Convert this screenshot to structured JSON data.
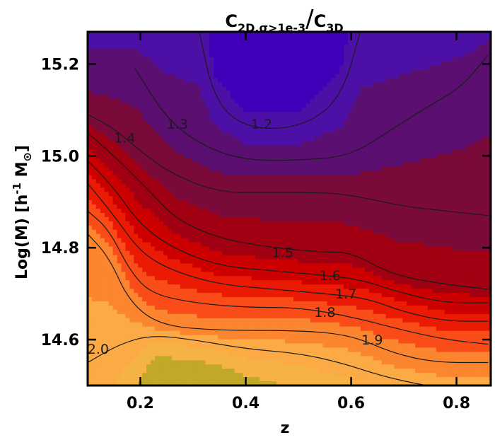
{
  "chart_data": {
    "type": "contour",
    "title": {
      "numerator_main": "C",
      "numerator_sub": "2D,σ>1e-3",
      "separator": "/",
      "denominator_main": "C",
      "denominator_sub": "3D"
    },
    "xlabel": "z",
    "ylabel": {
      "main": "Log(M)  [h",
      "sup": "-1",
      "rest": " M",
      "symbol": "⊙",
      "close": "]"
    },
    "xlim": [
      0.1,
      0.865
    ],
    "ylim": [
      14.5,
      15.27
    ],
    "x_ticks": [
      {
        "value": 0.2,
        "label": "0.2"
      },
      {
        "value": 0.4,
        "label": "0.4"
      },
      {
        "value": 0.6,
        "label": "0.6"
      },
      {
        "value": 0.8,
        "label": "0.8"
      }
    ],
    "y_ticks": [
      {
        "value": 14.6,
        "label": "14.6"
      },
      {
        "value": 14.8,
        "label": "14.8"
      },
      {
        "value": 15.0,
        "label": "15.0"
      },
      {
        "value": 15.2,
        "label": "15.2"
      }
    ],
    "contour_levels": [
      {
        "level": 1.2,
        "label": "1.2",
        "label_at": [
          0.43,
          15.07
        ],
        "points": [
          [
            0.31,
            15.28
          ],
          [
            0.34,
            15.12
          ],
          [
            0.4,
            15.06
          ],
          [
            0.5,
            15.06
          ],
          [
            0.58,
            15.12
          ],
          [
            0.62,
            15.28
          ]
        ]
      },
      {
        "level": 1.3,
        "label": "1.3",
        "label_at": [
          0.27,
          15.07
        ],
        "points": [
          [
            0.19,
            15.19
          ],
          [
            0.25,
            15.08
          ],
          [
            0.32,
            15.02
          ],
          [
            0.4,
            14.99
          ],
          [
            0.5,
            14.99
          ],
          [
            0.6,
            15.0
          ],
          [
            0.68,
            15.06
          ],
          [
            0.75,
            15.11
          ],
          [
            0.81,
            15.15
          ],
          [
            0.86,
            15.22
          ]
        ]
      },
      {
        "level": 1.4,
        "label": "1.4",
        "label_at": [
          0.17,
          15.04
        ],
        "points": [
          [
            0.1,
            15.09
          ],
          [
            0.15,
            15.06
          ],
          [
            0.2,
            15.01
          ],
          [
            0.26,
            14.96
          ],
          [
            0.35,
            14.92
          ],
          [
            0.45,
            14.92
          ],
          [
            0.56,
            14.92
          ],
          [
            0.62,
            14.91
          ],
          [
            0.7,
            14.89
          ],
          [
            0.78,
            14.88
          ],
          [
            0.86,
            14.87
          ]
        ]
      },
      {
        "level": 1.5,
        "label": "1.5",
        "label_at": [
          0.47,
          14.79
        ],
        "points": [
          [
            0.1,
            15.05
          ],
          [
            0.15,
            15.0
          ],
          [
            0.22,
            14.92
          ],
          [
            0.27,
            14.86
          ],
          [
            0.35,
            14.82
          ],
          [
            0.45,
            14.8
          ],
          [
            0.55,
            14.79
          ],
          [
            0.6,
            14.79
          ],
          [
            0.68,
            14.74
          ],
          [
            0.78,
            14.72
          ],
          [
            0.86,
            14.71
          ]
        ]
      },
      {
        "level": 1.6,
        "label": "1.6",
        "label_at": [
          0.56,
          14.74
        ],
        "points": [
          [
            0.1,
            14.99
          ],
          [
            0.15,
            14.93
          ],
          [
            0.2,
            14.85
          ],
          [
            0.26,
            14.8
          ],
          [
            0.35,
            14.76
          ],
          [
            0.45,
            14.75
          ],
          [
            0.55,
            14.74
          ],
          [
            0.62,
            14.73
          ],
          [
            0.7,
            14.7
          ],
          [
            0.78,
            14.68
          ],
          [
            0.86,
            14.68
          ]
        ]
      },
      {
        "level": 1.7,
        "label": "1.7",
        "label_at": [
          0.59,
          14.7
        ],
        "points": [
          [
            0.1,
            14.94
          ],
          [
            0.15,
            14.87
          ],
          [
            0.2,
            14.79
          ],
          [
            0.26,
            14.75
          ],
          [
            0.35,
            14.72
          ],
          [
            0.45,
            14.71
          ],
          [
            0.55,
            14.7
          ],
          [
            0.63,
            14.69
          ],
          [
            0.7,
            14.66
          ],
          [
            0.78,
            14.64
          ],
          [
            0.86,
            14.64
          ]
        ]
      },
      {
        "level": 1.8,
        "label": "1.8",
        "label_at": [
          0.55,
          14.66
        ],
        "points": [
          [
            0.1,
            14.88
          ],
          [
            0.14,
            14.84
          ],
          [
            0.18,
            14.75
          ],
          [
            0.22,
            14.7
          ],
          [
            0.3,
            14.68
          ],
          [
            0.4,
            14.67
          ],
          [
            0.5,
            14.67
          ],
          [
            0.6,
            14.65
          ],
          [
            0.7,
            14.62
          ],
          [
            0.78,
            14.6
          ],
          [
            0.86,
            14.59
          ]
        ]
      },
      {
        "level": 1.9,
        "label": "1.9",
        "label_at": [
          0.64,
          14.6
        ],
        "points": [
          [
            0.1,
            14.83
          ],
          [
            0.14,
            14.78
          ],
          [
            0.18,
            14.68
          ],
          [
            0.24,
            14.63
          ],
          [
            0.35,
            14.62
          ],
          [
            0.5,
            14.62
          ],
          [
            0.6,
            14.61
          ],
          [
            0.68,
            14.57
          ],
          [
            0.76,
            14.55
          ],
          [
            0.86,
            14.55
          ]
        ]
      },
      {
        "level": 2.0,
        "label": "2.0",
        "label_at": [
          0.12,
          14.58
        ],
        "points": [
          [
            0.1,
            14.55
          ],
          [
            0.16,
            14.59
          ],
          [
            0.22,
            14.61
          ],
          [
            0.3,
            14.6
          ],
          [
            0.4,
            14.58
          ],
          [
            0.5,
            14.57
          ],
          [
            0.58,
            14.55
          ],
          [
            0.66,
            14.52
          ],
          [
            0.74,
            14.5
          ],
          [
            0.8,
            14.49
          ]
        ]
      }
    ],
    "value_range": [
      1.1,
      2.2
    ],
    "colormap": [
      {
        "v": 1.1,
        "color": "#3e00b8"
      },
      {
        "v": 1.2,
        "color": "#4d10a6"
      },
      {
        "v": 1.3,
        "color": "#5b0f70"
      },
      {
        "v": 1.4,
        "color": "#7a0a3a"
      },
      {
        "v": 1.5,
        "color": "#a00012"
      },
      {
        "v": 1.6,
        "color": "#cc0000"
      },
      {
        "v": 1.7,
        "color": "#ea1a04"
      },
      {
        "v": 1.8,
        "color": "#fa4c18"
      },
      {
        "v": 1.9,
        "color": "#fc8530"
      },
      {
        "v": 2.0,
        "color": "#fcaa45"
      },
      {
        "v": 2.1,
        "color": "#f6b345"
      },
      {
        "v": 2.2,
        "color": "#c2a827"
      }
    ],
    "grid": false,
    "legend": "none"
  }
}
